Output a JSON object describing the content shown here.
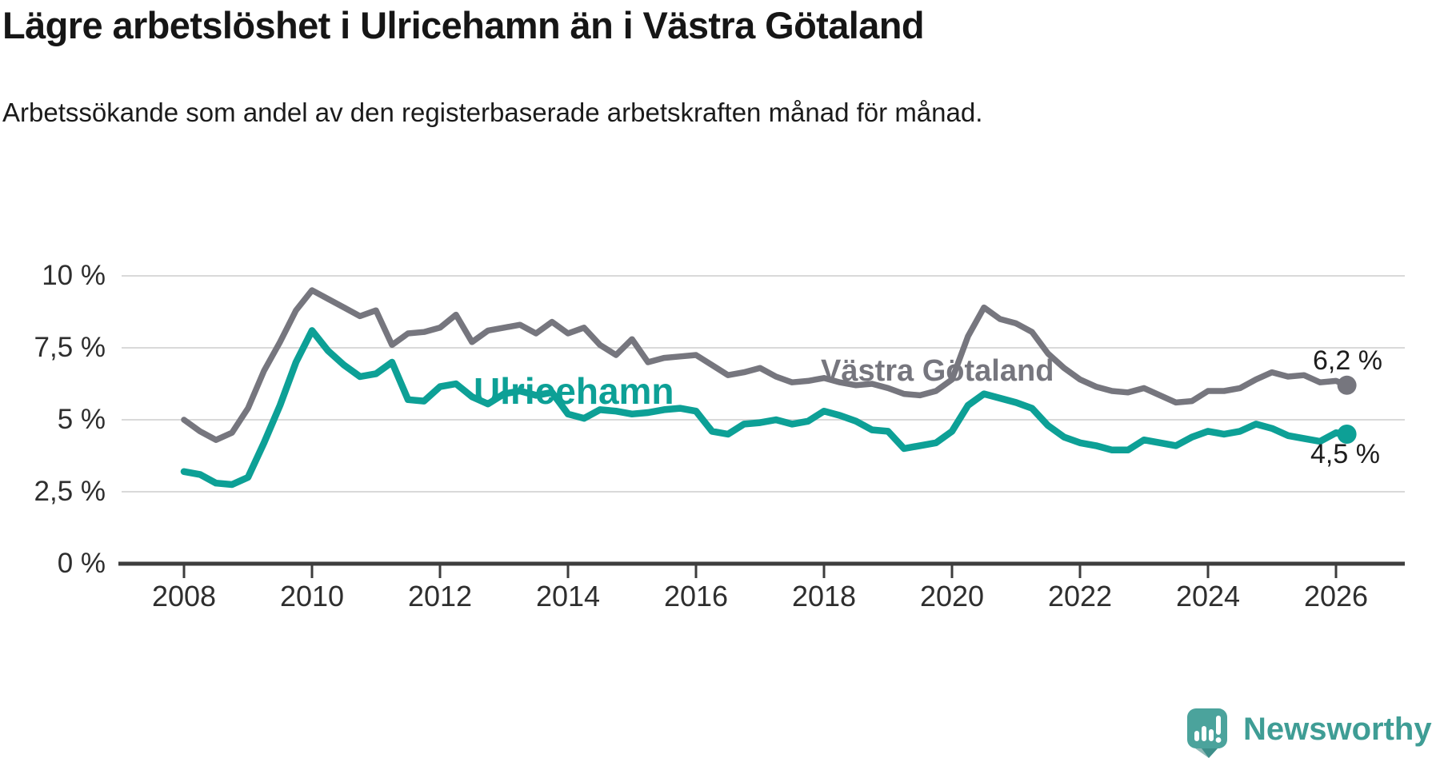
{
  "header": {
    "title": "Lägre arbetslöshet i Ulricehamn än i Västra Götaland",
    "subtitle": "Arbetssökande som andel av den registerbaserade arbetskraften månad för månad."
  },
  "chart_data": {
    "type": "line",
    "title": "Lägre arbetslöshet i Ulricehamn än i Västra Götaland",
    "subtitle": "Arbetssökande som andel av den registerbaserade arbetskraften månad för månad.",
    "xlabel": "",
    "ylabel": "",
    "x_unit": "year",
    "xlim": [
      2007.0,
      2027.05
    ],
    "ylim": [
      0,
      10.9
    ],
    "grid": "horizontal",
    "legend_position": "inline-labels",
    "y_ticks": [
      {
        "value": 0,
        "label": "0 %"
      },
      {
        "value": 2.5,
        "label": "2,5 %"
      },
      {
        "value": 5,
        "label": "5 %"
      },
      {
        "value": 7.5,
        "label": "7,5 %"
      },
      {
        "value": 10,
        "label": "10 %"
      }
    ],
    "x_ticks": [
      {
        "value": 2008,
        "label": "2008"
      },
      {
        "value": 2010,
        "label": "2010"
      },
      {
        "value": 2012,
        "label": "2012"
      },
      {
        "value": 2014,
        "label": "2014"
      },
      {
        "value": 2016,
        "label": "2016"
      },
      {
        "value": 2018,
        "label": "2018"
      },
      {
        "value": 2020,
        "label": "2020"
      },
      {
        "value": 2022,
        "label": "2022"
      },
      {
        "value": 2024,
        "label": "2024"
      },
      {
        "value": 2026,
        "label": "2026"
      }
    ],
    "x": [
      2008.0,
      2008.25,
      2008.5,
      2008.75,
      2009.0,
      2009.25,
      2009.5,
      2009.75,
      2010.0,
      2010.25,
      2010.5,
      2010.75,
      2011.0,
      2011.25,
      2011.5,
      2011.75,
      2012.0,
      2012.25,
      2012.5,
      2012.75,
      2013.0,
      2013.25,
      2013.5,
      2013.75,
      2014.0,
      2014.25,
      2014.5,
      2014.75,
      2015.0,
      2015.25,
      2015.5,
      2015.75,
      2016.0,
      2016.25,
      2016.5,
      2016.75,
      2017.0,
      2017.25,
      2017.5,
      2017.75,
      2018.0,
      2018.25,
      2018.5,
      2018.75,
      2019.0,
      2019.25,
      2019.5,
      2019.75,
      2020.0,
      2020.25,
      2020.5,
      2020.75,
      2021.0,
      2021.25,
      2021.5,
      2021.75,
      2022.0,
      2022.25,
      2022.5,
      2022.75,
      2023.0,
      2023.25,
      2023.5,
      2023.75,
      2024.0,
      2024.25,
      2024.5,
      2024.75,
      2025.0,
      2025.25,
      2025.5,
      2025.75,
      2026.0,
      2026.17
    ],
    "series": [
      {
        "name": "Västra Götaland",
        "color": "#76767e",
        "end_value": 6.2,
        "end_label": "6,2 %",
        "values": [
          5.0,
          4.6,
          4.3,
          4.55,
          5.4,
          6.7,
          7.7,
          8.8,
          9.5,
          9.2,
          8.9,
          8.6,
          8.8,
          7.6,
          8.0,
          8.05,
          8.2,
          8.65,
          7.7,
          8.1,
          8.2,
          8.3,
          8.0,
          8.4,
          8.0,
          8.2,
          7.6,
          7.25,
          7.8,
          7.0,
          7.15,
          7.2,
          7.25,
          6.9,
          6.55,
          6.65,
          6.8,
          6.5,
          6.3,
          6.35,
          6.45,
          6.3,
          6.2,
          6.25,
          6.1,
          5.9,
          5.85,
          6.0,
          6.4,
          7.9,
          8.9,
          8.5,
          8.35,
          8.05,
          7.3,
          6.8,
          6.4,
          6.15,
          6.0,
          5.95,
          6.1,
          5.85,
          5.6,
          5.65,
          6.0,
          6.0,
          6.1,
          6.4,
          6.65,
          6.5,
          6.55,
          6.3,
          6.35,
          6.2
        ]
      },
      {
        "name": "Ulricehamn",
        "color": "#0da096",
        "end_value": 4.5,
        "end_label": "4,5 %",
        "values": [
          3.2,
          3.1,
          2.8,
          2.75,
          3.0,
          4.2,
          5.5,
          7.0,
          8.1,
          7.4,
          6.9,
          6.5,
          6.6,
          7.0,
          5.7,
          5.65,
          6.15,
          6.25,
          5.8,
          5.55,
          5.9,
          6.0,
          5.85,
          5.95,
          5.2,
          5.05,
          5.35,
          5.3,
          5.2,
          5.25,
          5.35,
          5.4,
          5.3,
          4.6,
          4.5,
          4.85,
          4.9,
          5.0,
          4.85,
          4.95,
          5.3,
          5.15,
          4.95,
          4.65,
          4.6,
          4.0,
          4.1,
          4.2,
          4.6,
          5.5,
          5.9,
          5.75,
          5.6,
          5.4,
          4.8,
          4.4,
          4.2,
          4.1,
          3.95,
          3.95,
          4.3,
          4.2,
          4.1,
          4.4,
          4.6,
          4.5,
          4.6,
          4.85,
          4.7,
          4.45,
          4.35,
          4.25,
          4.55,
          4.5
        ]
      }
    ],
    "styling": {
      "gridline_color": "#d9d9d9",
      "axis_color": "#3d3d3d",
      "tick_text_color": "#2e2e2e"
    }
  },
  "branding": {
    "name": "Newsworthy",
    "icon": "newsworthy-speech-bubble-chart-icon",
    "icon_color": "#4ba39c",
    "icon_shadow_color": "#35807c",
    "text_color": "#3f9d95"
  }
}
